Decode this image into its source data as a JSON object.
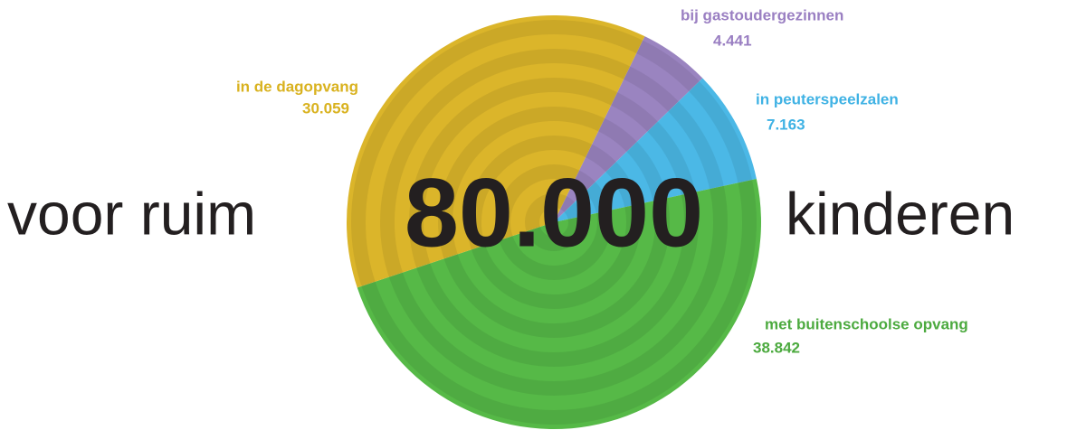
{
  "chart_data": {
    "type": "pie",
    "categories": [
      "bij gastoudergezinnen",
      "in peuterspeelzalen",
      "met buitenschoolse opvang",
      "in de dagopvang"
    ],
    "values": [
      4441,
      7163,
      38842,
      30059
    ],
    "value_labels": [
      "4.441",
      "7.163",
      "38.842",
      "30.059"
    ],
    "colors": [
      "#9a84c0",
      "#4bb8e6",
      "#56b947",
      "#dbb52a"
    ],
    "label_colors": [
      "#9a7fc2",
      "#3fb2e4",
      "#4caa3f",
      "#d9b21f"
    ],
    "annotations": [
      "voor ruim",
      "80.000",
      "kinderen"
    ]
  }
}
